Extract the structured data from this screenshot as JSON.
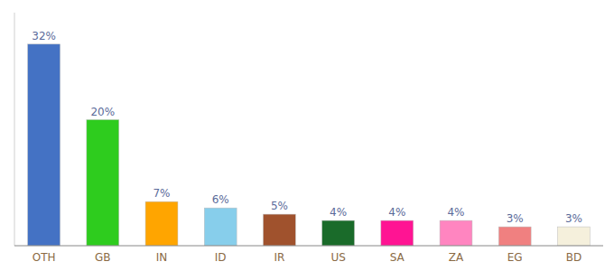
{
  "chart_data": {
    "type": "bar",
    "categories": [
      "OTH",
      "GB",
      "IN",
      "ID",
      "IR",
      "US",
      "SA",
      "ZA",
      "EG",
      "BD"
    ],
    "values": [
      32,
      20,
      7,
      6,
      5,
      4,
      4,
      4,
      3,
      3
    ],
    "value_labels": [
      "32%",
      "20%",
      "7%",
      "6%",
      "5%",
      "4%",
      "4%",
      "4%",
      "3%",
      "3%"
    ],
    "colors": [
      "#4472c4",
      "#2ecc1e",
      "#ffa500",
      "#87ceeb",
      "#a0522d",
      "#1a6b2a",
      "#ff1493",
      "#ff85c0",
      "#f08080",
      "#f5f0dc"
    ],
    "ylim": [
      0,
      37
    ],
    "data_labels": true,
    "tick_labels": "x",
    "grid": false
  }
}
